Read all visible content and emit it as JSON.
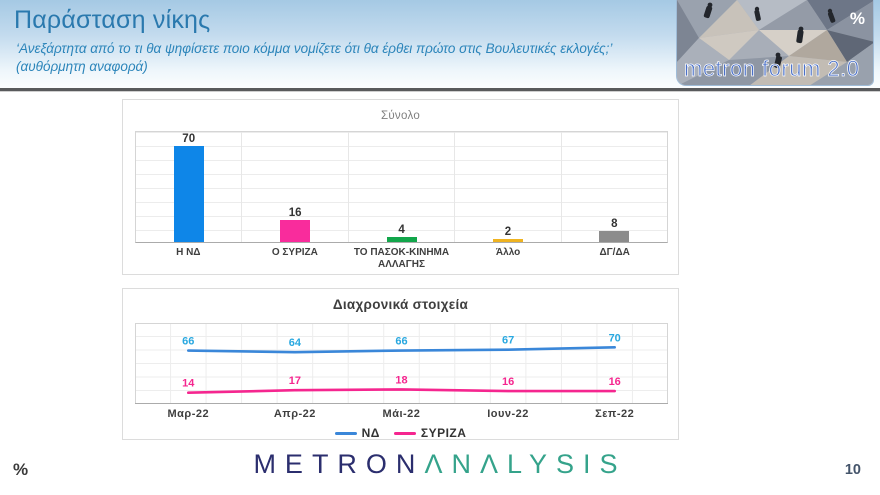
{
  "header": {
    "title": "Παράσταση νίκης",
    "subtitle": "‘Ανεξάρτητα από το τι θα ψηφίσετε ποιο κόμμα νομίζετε ότι θα έρθει πρώτο στις Βουλευτικές εκλογές;’ (αυθόρμητη αναφορά)"
  },
  "logo": {
    "text": "metron forum 2.0",
    "percent": "%"
  },
  "chart_data": [
    {
      "type": "bar",
      "title": "Σύνολο",
      "categories": [
        "Η ΝΔ",
        "Ο ΣΥΡΙΖΑ",
        "ΤΟ ΠΑΣΟΚ-ΚΙΝΗΜΑ ΑΛΛΑΓΗΣ",
        "Άλλο",
        "ΔΓ/ΔΑ"
      ],
      "values": [
        70,
        16,
        4,
        2,
        8
      ],
      "colors": [
        "#0e86e8",
        "#f92c9c",
        "#12a64b",
        "#efb320",
        "#8c8c8c"
      ],
      "ylim": [
        0,
        80
      ],
      "grid": "horizontal",
      "xlabel": "",
      "ylabel": ""
    },
    {
      "type": "line",
      "title": "Διαχρονικά στοιχεία",
      "categories": [
        "Μαρ-22",
        "Απρ-22",
        "Μάι-22",
        "Ιουν-22",
        "Σεπ-22"
      ],
      "series": [
        {
          "name": "ΝΔ",
          "values": [
            66,
            64,
            66,
            67,
            70
          ],
          "color": "#3a87d9",
          "label_color": "#29a8e0"
        },
        {
          "name": "ΣΥΡΙΖΑ",
          "values": [
            14,
            17,
            18,
            16,
            16
          ],
          "color": "#f5268f",
          "label_color": "#f5268f"
        }
      ],
      "ylim": [
        0,
        100
      ],
      "grid": "both",
      "legend_position": "bottom",
      "xlabel": "",
      "ylabel": ""
    }
  ],
  "footer": {
    "brand_metron": "METRON",
    "brand_analysis": "ΛNΛLYSIS",
    "percent": "%",
    "page_number": "10"
  }
}
